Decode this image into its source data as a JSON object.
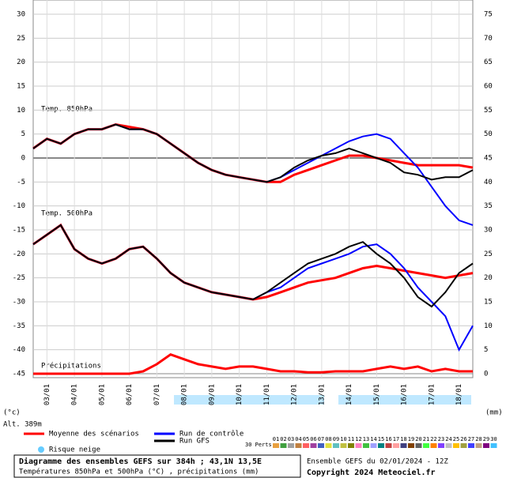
{
  "chart_data": {
    "type": "line",
    "title": "Diagramme des ensembles GEFS sur 384h ; 43,1N 13,5E",
    "subtitle": "Températures 850hPa et 500hPa (°C) , précipitations (mm)",
    "run_label": "Ensemble GEFS du 02/01/2024 - 12Z",
    "copyright": "Copyright 2024 Meteociel.fr",
    "y_label": "(°c)",
    "y2_label": "(mm)",
    "altitude": "Alt. 389m",
    "panel_labels": [
      "Temp. 850hPa",
      "Temp. 500hPa",
      "Précipitations"
    ],
    "snow_label": "Risque neige",
    "perts_label": "30 Perts.",
    "perts": [
      {
        "name": "01",
        "color": "#e8a040"
      },
      {
        "name": "02",
        "color": "#40a040"
      },
      {
        "name": "03",
        "color": "#a0a0a0"
      },
      {
        "name": "04",
        "color": "#c08040"
      },
      {
        "name": "05",
        "color": "#ff6060"
      },
      {
        "name": "06",
        "color": "#a040a0"
      },
      {
        "name": "07",
        "color": "#4060c0"
      },
      {
        "name": "08",
        "color": "#e0e040"
      },
      {
        "name": "09",
        "color": "#60c0c0"
      },
      {
        "name": "10",
        "color": "#c0c040"
      },
      {
        "name": "11",
        "color": "#808000"
      },
      {
        "name": "12",
        "color": "#ff80c0"
      },
      {
        "name": "13",
        "color": "#40c040"
      },
      {
        "name": "14",
        "color": "#a0a0ff"
      },
      {
        "name": "15",
        "color": "#008080"
      },
      {
        "name": "16",
        "color": "#c04040"
      },
      {
        "name": "17",
        "color": "#ffa0a0"
      },
      {
        "name": "18",
        "color": "#404080"
      },
      {
        "name": "19",
        "color": "#804000"
      },
      {
        "name": "20",
        "color": "#606060"
      },
      {
        "name": "21",
        "color": "#40ff40"
      },
      {
        "name": "22",
        "color": "#ff8000"
      },
      {
        "name": "23",
        "color": "#8040ff"
      },
      {
        "name": "24",
        "color": "#c0c0c0"
      },
      {
        "name": "25",
        "color": "#ffc000"
      },
      {
        "name": "26",
        "color": "#a0a040"
      },
      {
        "name": "27",
        "color": "#4040ff"
      },
      {
        "name": "28",
        "color": "#c0a080"
      },
      {
        "name": "29",
        "color": "#800080"
      },
      {
        "name": "30",
        "color": "#40c0ff"
      }
    ],
    "x": [
      0,
      12,
      24,
      36,
      48,
      60,
      72,
      84,
      96,
      108,
      120,
      132,
      144,
      156,
      168,
      180,
      192,
      204,
      216,
      228,
      240,
      252,
      264,
      276,
      288,
      300,
      312,
      324,
      336,
      348,
      360,
      372,
      384
    ],
    "xlim": [
      0,
      384
    ],
    "xticks": [
      {
        "value": 12,
        "label": "03/01"
      },
      {
        "value": 36,
        "label": "04/01"
      },
      {
        "value": 60,
        "label": "05/01"
      },
      {
        "value": 84,
        "label": "06/01"
      },
      {
        "value": 108,
        "label": "07/01"
      },
      {
        "value": 132,
        "label": "08/01"
      },
      {
        "value": 156,
        "label": "09/01"
      },
      {
        "value": 180,
        "label": "10/01"
      },
      {
        "value": 204,
        "label": "11/01"
      },
      {
        "value": 228,
        "label": "12/01"
      },
      {
        "value": 252,
        "label": "13/01"
      },
      {
        "value": 276,
        "label": "14/01"
      },
      {
        "value": 300,
        "label": "15/01"
      },
      {
        "value": 324,
        "label": "16/01"
      },
      {
        "value": 348,
        "label": "17/01"
      },
      {
        "value": 372,
        "label": "18/01"
      }
    ],
    "ylim": [
      -45,
      30
    ],
    "yticks": [
      30,
      25,
      20,
      15,
      10,
      5,
      0,
      -5,
      -10,
      -15,
      -20,
      -25,
      -30,
      -35,
      -40,
      -45
    ],
    "y2lim": [
      0,
      75
    ],
    "y2ticks": [
      75,
      70,
      65,
      60,
      55,
      50,
      45,
      40,
      35,
      30,
      25,
      20,
      15,
      10,
      5,
      0
    ],
    "grid": true,
    "series": [
      {
        "name": "Moyenne des scénarios",
        "color": "#ff0000",
        "values": [
          2,
          4,
          3,
          5,
          6,
          6,
          7,
          6.5,
          6,
          5,
          3,
          1,
          -1,
          -2.5,
          -3.5,
          -4,
          -4.5,
          -5,
          -5,
          -3.5,
          -2.5,
          -1.5,
          -0.5,
          0.5,
          0.5,
          0,
          -0.5,
          -1,
          -1.5,
          -1.5,
          -1.5,
          -1.5,
          -2
        ]
      },
      {
        "name": "Run de contrôle",
        "color": "#0000ff",
        "values": [
          2,
          4,
          3,
          5,
          6,
          6,
          7,
          6,
          6,
          5,
          3,
          1,
          -1,
          -2.5,
          -3.5,
          -4,
          -4.5,
          -5,
          -4,
          -2.5,
          -1,
          0.5,
          2,
          3.5,
          4.5,
          5,
          4,
          1,
          -2,
          -6,
          -10,
          -13,
          -14
        ]
      },
      {
        "name": "Run GFS",
        "color": "#000000",
        "values": [
          2,
          4,
          3,
          5,
          6,
          6,
          7,
          6,
          6,
          5,
          3,
          1,
          -1,
          -2.5,
          -3.5,
          -4,
          -4.5,
          -5,
          -4,
          -2,
          -0.5,
          0.5,
          1,
          2,
          1,
          0,
          -1,
          -3,
          -3.5,
          -4.5,
          -4,
          -4,
          -2.5
        ]
      },
      {
        "color": "#ff0000",
        "values": [
          -18,
          -16,
          -14,
          -19,
          -21,
          -22,
          -21,
          -19,
          -18.5,
          -21,
          -24,
          -26,
          -27,
          -28,
          -28.5,
          -29,
          -29.5,
          -29,
          -28,
          -27,
          -26,
          -25.5,
          -25,
          -24,
          -23,
          -22.5,
          -23,
          -23.5,
          -24,
          -24.5,
          -25,
          -24.5,
          -24
        ]
      },
      {
        "color": "#0000ff",
        "values": [
          -18,
          -16,
          -14,
          -19,
          -21,
          -22,
          -21,
          -19,
          -18.5,
          -21,
          -24,
          -26,
          -27,
          -28,
          -28.5,
          -29,
          -29.5,
          -28,
          -27,
          -25,
          -23,
          -22,
          -21,
          -20,
          -18.5,
          -18,
          -20,
          -23,
          -27,
          -30,
          -33,
          -40,
          -35
        ]
      },
      {
        "color": "#000000",
        "values": [
          -18,
          -16,
          -14,
          -19,
          -21,
          -22,
          -21,
          -19,
          -18.5,
          -21,
          -24,
          -26,
          -27,
          -28,
          -28.5,
          -29,
          -29.5,
          -28,
          -26,
          -24,
          -22,
          -21,
          -20,
          -18.5,
          -17.5,
          -20,
          -22,
          -25,
          -29,
          -31,
          -28,
          -24,
          -22
        ]
      },
      {
        "color": "#ff0000",
        "axis": "y2",
        "values": [
          0,
          0,
          0,
          0,
          0,
          0,
          0,
          0,
          0.5,
          2,
          4,
          3,
          2,
          1.5,
          1,
          1.5,
          1.5,
          1,
          0.5,
          0.5,
          0.3,
          0.3,
          0.5,
          0.5,
          0.5,
          1,
          1.5,
          1,
          1.5,
          0.5,
          1,
          0.5,
          0.5
        ]
      }
    ]
  }
}
